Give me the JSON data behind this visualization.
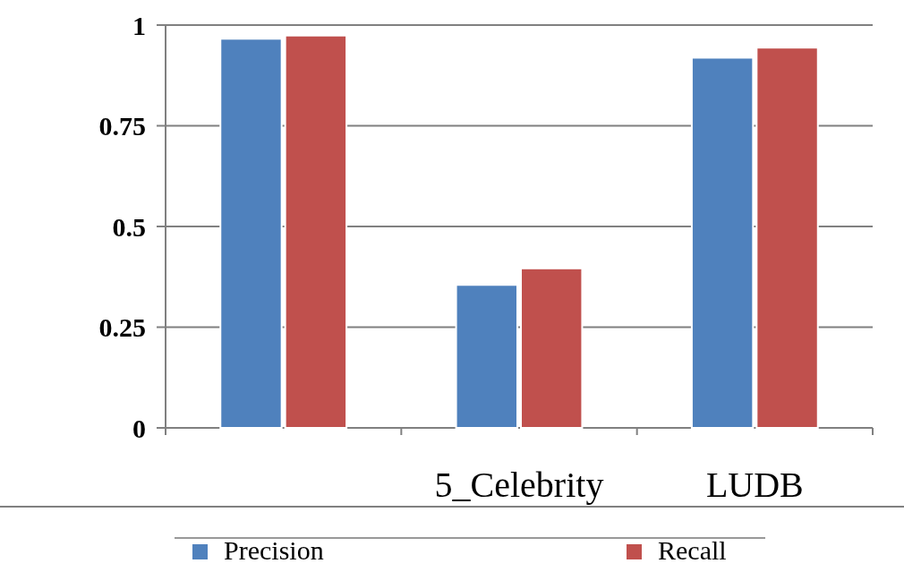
{
  "chart_data": {
    "type": "bar",
    "categories": [
      null,
      "5_Celebrity",
      "LUDB"
    ],
    "series": [
      {
        "name": "Precision",
        "color": "#4f81bd",
        "values": [
          0.966,
          0.355,
          0.919
        ]
      },
      {
        "name": "Recall",
        "color": "#c0504d",
        "values": [
          0.974,
          0.396,
          0.944
        ]
      }
    ],
    "ylim": [
      0,
      1
    ],
    "yticks": [
      0,
      0.25,
      0.5,
      0.75,
      1
    ],
    "grid": "y",
    "legend": "bottom"
  }
}
